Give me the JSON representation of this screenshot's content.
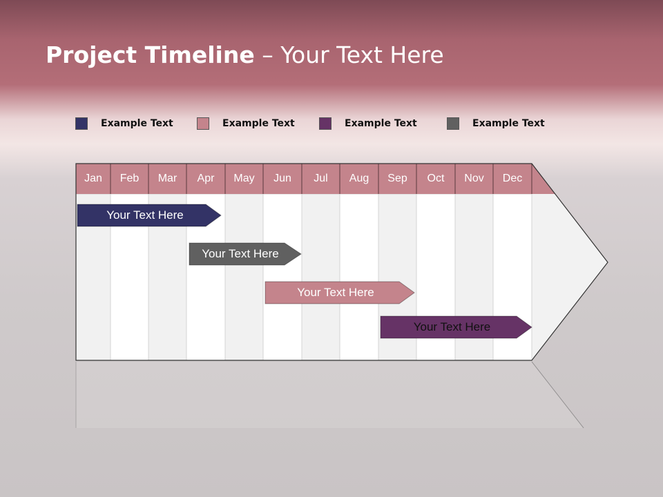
{
  "title": {
    "bold": "Project Timeline",
    "rest": " – Your Text Here"
  },
  "legend": [
    {
      "label": "Example Text",
      "color": "#333366"
    },
    {
      "label": "Example Text",
      "color": "#c4848c"
    },
    {
      "label": "Example Text",
      "color": "#663366"
    },
    {
      "label": "Example Text",
      "color": "#606060"
    }
  ],
  "months": [
    "Jan",
    "Feb",
    "Mar",
    "Apr",
    "May",
    "Jun",
    "Jul",
    "Aug",
    "Sep",
    "Oct",
    "Nov",
    "Dec"
  ],
  "header_color": "#c4848c",
  "tasks": [
    {
      "label": "Your  Text Here",
      "color": "#333366",
      "text_color": "#ffffff",
      "start_month": "Jan",
      "end_month": "Apr"
    },
    {
      "label": "Your  Text Here",
      "color": "#606060",
      "text_color": "#ffffff",
      "start_month": "Apr",
      "end_month": "Jun"
    },
    {
      "label": "Your  Text Here",
      "color": "#c4848c",
      "text_color": "#ffffff",
      "start_month": "Jun",
      "end_month": "Sep"
    },
    {
      "label": "Your  Text Here",
      "color": "#663366",
      "text_color": "#111111",
      "start_month": "Sep",
      "end_month": "Dec"
    }
  ]
}
